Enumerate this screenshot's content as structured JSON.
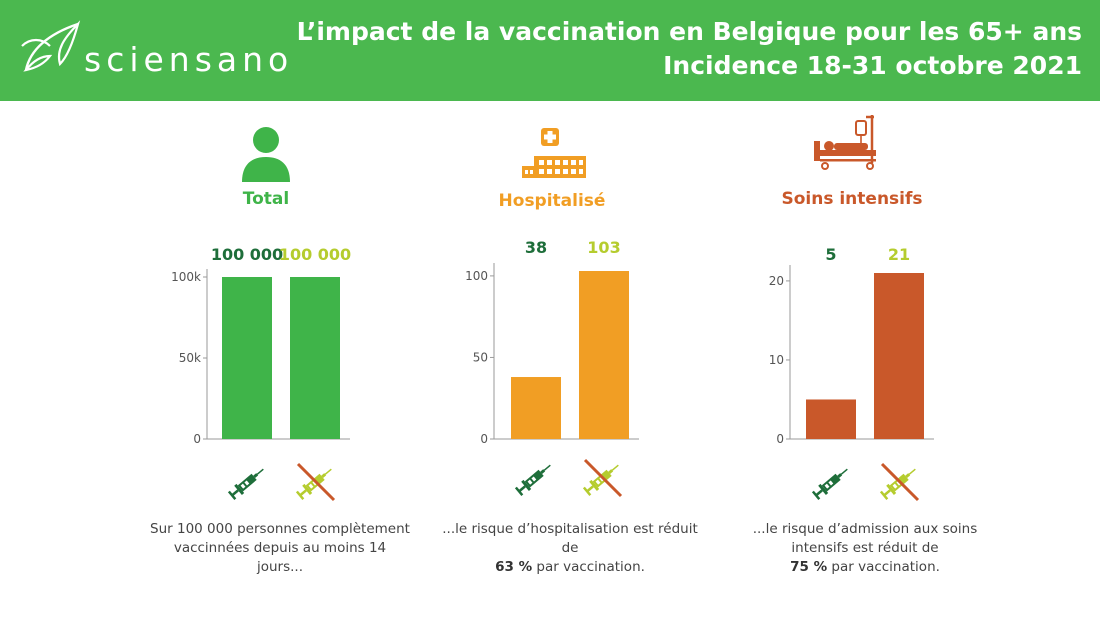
{
  "brand": {
    "logo_text": "sciensano",
    "logo_icon": "sciensano-leaf-logo"
  },
  "header": {
    "title_line1": "L’impact de la vaccination en Belgique pour les 65+ ans",
    "title_line2": "Incidence 18-31 octobre 2021",
    "background": "#4bb84f"
  },
  "colors": {
    "vaccinated_dark_green": "#1e6e3a",
    "unvaccinated_lime": "#b5cc2e",
    "total_green": "#3fb449",
    "hospital_orange": "#f19e24",
    "icu_red_orange": "#c9582a"
  },
  "panels": [
    {
      "icon": "person-icon",
      "title": "Total",
      "caption": {
        "pre": "Sur 100 000 personnes complètement vaccinnées depuis au moins 14 jours...",
        "bold": "",
        "post": ""
      }
    },
    {
      "icon": "hospital-icon",
      "title": "Hospitalisé",
      "caption": {
        "pre": "...le risque d’hospitalisation est réduit de",
        "bold": "63 %",
        "post": "par vaccination."
      }
    },
    {
      "icon": "hospital-bed-icon",
      "title": "Soins intensifs",
      "caption": {
        "pre": "...le risque d’admission aux soins intensifs est réduit de",
        "bold": "75 %",
        "post": "par vaccination."
      }
    }
  ],
  "legend": {
    "vaccinated_icon": "syringe-icon",
    "unvaccinated_icon": "crossed-syringe-icon"
  },
  "chart_data": [
    {
      "type": "bar",
      "title": "Total",
      "categories": [
        "vaccinated-syringe-icon",
        "crossed-syringe-icon"
      ],
      "values": [
        100000,
        100000
      ],
      "value_labels": [
        "100 000",
        "100 000"
      ],
      "yticks": [
        "0",
        "50k",
        "100k"
      ],
      "ytick_values": [
        0,
        50000,
        100000
      ],
      "ylim": [
        0,
        100000
      ],
      "bar_color": "#3fb449",
      "label_colors": [
        "#1e6e3a",
        "#b5cc2e"
      ],
      "grid": false
    },
    {
      "type": "bar",
      "title": "Hospitalisé",
      "categories": [
        "vaccinated-syringe-icon",
        "crossed-syringe-icon"
      ],
      "values": [
        38,
        103
      ],
      "value_labels": [
        "38",
        "103"
      ],
      "yticks": [
        "0",
        "50",
        "100"
      ],
      "ytick_values": [
        0,
        50,
        100
      ],
      "ylim": [
        0,
        103
      ],
      "bar_color": "#f19e24",
      "label_colors": [
        "#1e6e3a",
        "#b5cc2e"
      ],
      "grid": false
    },
    {
      "type": "bar",
      "title": "Soins intensifs",
      "categories": [
        "vaccinated-syringe-icon",
        "crossed-syringe-icon"
      ],
      "values": [
        5,
        21
      ],
      "value_labels": [
        "5",
        "21"
      ],
      "yticks": [
        "0",
        "10",
        "20"
      ],
      "ytick_values": [
        0,
        10,
        20
      ],
      "ylim": [
        0,
        21
      ],
      "bar_color": "#c9582a",
      "label_colors": [
        "#1e6e3a",
        "#b5cc2e"
      ],
      "grid": false
    }
  ]
}
